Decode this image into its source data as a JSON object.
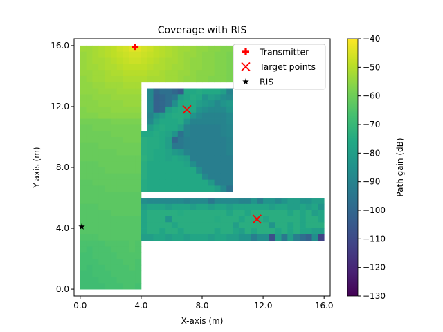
{
  "chart_data": {
    "type": "heatmap",
    "title": "Coverage with RIS",
    "xlabel": "X-axis (m)",
    "ylabel": "Y-axis (m)",
    "xlim": [
      -0.4,
      16.4
    ],
    "ylim": [
      -0.45,
      16.45
    ],
    "x_ticks": [
      0,
      4,
      8,
      12,
      16
    ],
    "x_tick_labels": [
      "0.0",
      "4.0",
      "8.0",
      "12.0",
      "16.0"
    ],
    "y_ticks": [
      0,
      4,
      8,
      12,
      16
    ],
    "y_tick_labels": [
      "0.0",
      "4.0",
      "8.0",
      "12.0",
      "16.0"
    ],
    "grid": false,
    "colormap": "viridis",
    "colorbar": {
      "label": "Path gain (dB)",
      "range": [
        -130,
        -40
      ],
      "ticks": [
        -130,
        -120,
        -110,
        -100,
        -90,
        -80,
        -70,
        -60,
        -50,
        -40
      ],
      "tick_labels": [
        "−130",
        "−120",
        "−110",
        "−100",
        "−90",
        "−80",
        "−70",
        "−60",
        "−50",
        "−40"
      ]
    },
    "grid_extent_m": [
      0,
      16,
      0,
      16
    ],
    "cell_size_m": 0.4,
    "rows_top_to_bottom_dB": [
      [
        -53,
        -53,
        -52,
        -51,
        -50,
        -49,
        -47,
        -46,
        -44,
        -44,
        -46,
        -47,
        -49,
        -50,
        -51,
        -52,
        -53,
        -53,
        -54,
        -55,
        -55,
        -56,
        -56,
        -57,
        -57
      ],
      [
        -54,
        -53,
        -52,
        -51,
        -50,
        -49,
        -48,
        -47,
        -46,
        -46,
        -47,
        -48,
        -49,
        -50,
        -51,
        -52,
        -53,
        -54,
        -54,
        -55,
        -56,
        -56,
        -57,
        -57,
        -58
      ],
      [
        -54,
        -53,
        -52,
        -52,
        -51,
        -50,
        -49,
        -48,
        -47,
        -47,
        -48,
        -49,
        -50,
        -51,
        -52,
        -52,
        -53,
        -54,
        -55,
        -55,
        -56,
        -56,
        -57,
        -57,
        -58
      ],
      [
        -54,
        -53,
        -53,
        -52,
        -51,
        -51,
        -50,
        -49,
        -49,
        -49,
        -49,
        -50,
        -51,
        -51,
        -52,
        -53,
        -53,
        -54,
        -55,
        -55,
        -56,
        -56,
        -57,
        -57,
        -58
      ],
      [
        -54,
        -54,
        -53,
        -53,
        -52,
        -51,
        -51,
        -50,
        -50,
        -50,
        -50,
        -51,
        -51,
        -52,
        -53,
        -53,
        -54,
        -54,
        -55,
        -56,
        -56,
        -56,
        -57,
        -57,
        -58
      ],
      [
        -55,
        -54,
        -53,
        -53,
        -52,
        -52,
        -52,
        -51,
        -51,
        -51,
        -51,
        -52,
        -52,
        -52,
        -53,
        -53,
        -54,
        -55,
        -55,
        -56,
        -56,
        -57,
        -57,
        -57,
        -58
      ],
      [
        -55,
        -55,
        -54,
        -54,
        -53,
        -53,
        -53,
        -52,
        -52,
        -52
      ],
      [
        -55,
        -55,
        -55,
        -54,
        -54,
        -54,
        -53,
        -53,
        -53,
        -53,
        null,
        -88,
        -100,
        -97,
        -97,
        -100,
        -104,
        -76,
        -76,
        -75,
        -76,
        -76,
        -76,
        -80,
        -90
      ],
      [
        -56,
        -56,
        -55,
        -55,
        -55,
        -54,
        -54,
        -54,
        -54,
        -54,
        null,
        -88,
        -102,
        -100,
        -97,
        -94,
        -80,
        -77,
        -75,
        -76,
        -84,
        -80,
        -82,
        -86,
        -88
      ],
      [
        -56,
        -56,
        -56,
        -55,
        -55,
        -55,
        -55,
        -54,
        -54,
        -54,
        null,
        -88,
        -102,
        -100,
        -97,
        -86,
        -76,
        -75,
        -76,
        -80,
        -82,
        -84,
        -88,
        -84,
        -82
      ],
      [
        -57,
        -56,
        -56,
        -56,
        -56,
        -55,
        -55,
        -55,
        -55,
        -55,
        null,
        -88,
        -102,
        -100,
        -80,
        -76,
        -75,
        -74,
        -76,
        -84,
        -86,
        -88,
        -88,
        -88,
        -84
      ],
      [
        -57,
        -57,
        -57,
        -56,
        -56,
        -56,
        -56,
        -56,
        -56,
        -56,
        null,
        -90,
        -84,
        -80,
        -76,
        -75,
        -75,
        -76,
        -84,
        -88,
        -90,
        -90,
        -90,
        -90,
        -88
      ],
      [
        -59,
        -59,
        -59,
        -59,
        -59,
        -58,
        -58,
        -58,
        -58,
        -58,
        null,
        -88,
        -80,
        -76,
        -76,
        -76,
        -75,
        -84,
        -90,
        -90,
        -90,
        -90,
        -90,
        -90,
        -88
      ],
      [
        -60,
        -60,
        -59,
        -59,
        -59,
        -59,
        -59,
        -59,
        -59,
        -59,
        null,
        -80,
        -76,
        -75,
        -76,
        -76,
        -80,
        -90,
        -92,
        -92,
        -92,
        -92,
        -92,
        -90,
        -89
      ],
      [
        -60,
        -60,
        -60,
        -60,
        -60,
        -59,
        -59,
        -59,
        -59,
        -59,
        -76,
        -76,
        -75,
        -76,
        -78,
        -84,
        -96,
        -90,
        -92,
        -92,
        -92,
        -92,
        -92,
        -90,
        -89
      ],
      [
        -60,
        -60,
        -60,
        -60,
        -60,
        -60,
        -60,
        -59,
        -59,
        -59,
        -74,
        -75,
        -75,
        -76,
        -80,
        -100,
        -94,
        -92,
        -92,
        -92,
        -92,
        -92,
        -92,
        -92,
        -90
      ],
      [
        -61,
        -61,
        -61,
        -60,
        -60,
        -60,
        -60,
        -60,
        -60,
        -60,
        -74,
        -75,
        -75,
        -76,
        -80,
        -94,
        -94,
        -92,
        -92,
        -92,
        -92,
        -92,
        -92,
        -92,
        -90
      ],
      [
        -61,
        -61,
        -61,
        -61,
        -61,
        -61,
        -60,
        -60,
        -60,
        -60,
        -74,
        -75,
        -76,
        -76,
        -78,
        -82,
        -84,
        -90,
        -92,
        -92,
        -92,
        -92,
        -92,
        -92,
        -90
      ],
      [
        -61,
        -61,
        -61,
        -61,
        -61,
        -61,
        -61,
        -61,
        -61,
        -61,
        -73,
        -75,
        -76,
        -76,
        -78,
        -76,
        -78,
        -80,
        -92,
        -92,
        -92,
        -92,
        -92,
        -92,
        -92
      ],
      [
        -62,
        -62,
        -62,
        -61,
        -61,
        -61,
        -61,
        -61,
        -61,
        -61,
        -74,
        -76,
        -76,
        -76,
        -76,
        -76,
        -76,
        -78,
        -86,
        -92,
        -92,
        -92,
        -92,
        -92,
        -92
      ],
      [
        -62,
        -62,
        -62,
        -62,
        -61,
        -61,
        -61,
        -61,
        -61,
        -61,
        -74,
        -76,
        -76,
        -76,
        -76,
        -76,
        -76,
        -76,
        -76,
        -86,
        -92,
        -92,
        -92,
        -92,
        -92
      ],
      [
        -62,
        -62,
        -62,
        -62,
        -62,
        -62,
        -62,
        -62,
        -62,
        -62,
        -74,
        -76,
        -76,
        -76,
        -76,
        -76,
        -76,
        -76,
        -76,
        -76,
        -88,
        -92,
        -92,
        -92,
        -92
      ],
      [
        -63,
        -63,
        -62,
        -62,
        -62,
        -62,
        -62,
        -62,
        -62,
        -62,
        -75,
        -76,
        -76,
        -76,
        -76,
        -76,
        -76,
        -76,
        -76,
        -76,
        -76,
        -82,
        -92,
        -92,
        -92
      ],
      [
        -63,
        -63,
        -63,
        -63,
        -62,
        -62,
        -62,
        -62,
        -62,
        -62,
        -75,
        -76,
        -76,
        -76,
        -76,
        -76,
        -76,
        -76,
        -76,
        -76,
        -76,
        -76,
        -80,
        -88,
        -96
      ],
      [
        -63,
        -63,
        -63,
        -63,
        -63,
        -63,
        -63,
        -63,
        -63,
        -63
      ],
      [
        -63,
        -63,
        -63,
        -63,
        -63,
        -63,
        -63,
        -63,
        -63,
        -63,
        -86,
        -88,
        -88,
        -88,
        -88,
        -88,
        -88,
        -90,
        -88,
        -88,
        -88,
        -94,
        -88,
        -88,
        -88,
        -88,
        -90,
        -90,
        -84,
        -92,
        -84,
        -84,
        -88,
        -84,
        -80,
        -80,
        -84,
        -84,
        -80,
        -80
      ],
      [
        -64,
        -64,
        -64,
        -63,
        -63,
        -63,
        -63,
        -63,
        -63,
        -63,
        -80,
        -77,
        -77,
        -77,
        -80,
        -77,
        -77,
        -77,
        -80,
        -77,
        -77,
        -80,
        -77,
        -77,
        -80,
        -77,
        -77,
        -77,
        -77,
        -77,
        -77,
        -80,
        -77,
        -77,
        -80,
        -80,
        -77,
        -80,
        -77,
        -84
      ],
      [
        -64,
        -64,
        -64,
        -64,
        -64,
        -63,
        -63,
        -63,
        -63,
        -63,
        -77,
        -74,
        -74,
        -74,
        -74,
        -74,
        -75,
        -74,
        -74,
        -74,
        -74,
        -74,
        -74,
        -74,
        -77,
        -74,
        -74,
        -77,
        -74,
        -74,
        -74,
        -74,
        -74,
        -74,
        -77,
        -74,
        -77,
        -74,
        -80,
        -77
      ],
      [
        -64,
        -64,
        -64,
        -64,
        -64,
        -64,
        -64,
        -64,
        -64,
        -64,
        -77,
        -74,
        -74,
        -74,
        -84,
        -74,
        -74,
        -74,
        -74,
        -74,
        -74,
        -74,
        -75,
        -74,
        -74,
        -74,
        -77,
        -74,
        -74,
        -74,
        -77,
        -74,
        -74,
        -74,
        -74,
        -74,
        -77,
        -74,
        -74,
        -77
      ],
      [
        -64,
        -64,
        -64,
        -64,
        -64,
        -64,
        -64,
        -64,
        -64,
        -64,
        -77,
        -74,
        -74,
        -74,
        -74,
        -77,
        -74,
        -74,
        -74,
        -74,
        -74,
        -74,
        -74,
        -74,
        -74,
        -80,
        -74,
        -74,
        -74,
        -74,
        -74,
        -84,
        -74,
        -74,
        -77,
        -74,
        -77,
        -74,
        -74,
        -74
      ],
      [
        -64,
        -64,
        -64,
        -64,
        -64,
        -64,
        -64,
        -64,
        -64,
        -64,
        -77,
        -74,
        -74,
        -77,
        -74,
        -74,
        -77,
        -74,
        -74,
        -74,
        -74,
        -74,
        -77,
        -74,
        -74,
        -77,
        -80,
        -74,
        -77,
        -74,
        -74,
        -74,
        -77,
        -74,
        -77,
        -74,
        -77,
        -77,
        -80,
        -80
      ],
      [
        -65,
        -65,
        -65,
        -64,
        -64,
        -64,
        -64,
        -64,
        -64,
        -64,
        -80,
        -80,
        -77,
        -77,
        -80,
        -77,
        -77,
        -80,
        -77,
        -77,
        -77,
        -80,
        -77,
        -77,
        -80,
        -80,
        -84,
        -84,
        -92,
        -86,
        -86,
        -108,
        -80,
        -94,
        -80,
        -92,
        -98,
        -102,
        -86,
        -112
      ],
      [
        -66,
        -66,
        -66,
        -66,
        -65,
        -65,
        -65,
        -65,
        -64,
        -65
      ],
      [
        -66,
        -67,
        -66,
        -66,
        -66,
        -65,
        -65,
        -65,
        -64,
        -65
      ],
      [
        -67,
        -67,
        -66,
        -66,
        -66,
        -66,
        -65,
        -65,
        -65,
        -65
      ],
      [
        -67,
        -67,
        -67,
        -66,
        -66,
        -66,
        -66,
        -65,
        -65,
        -66
      ],
      [
        -67,
        -68,
        -67,
        -67,
        -66,
        -66,
        -66,
        -66,
        -65,
        -66
      ],
      [
        -68,
        -68,
        -67,
        -67,
        -67,
        -66,
        -66,
        -66,
        -66,
        -66
      ],
      [
        -68,
        -68,
        -68,
        -67,
        -67,
        -67,
        -66,
        -66,
        -66,
        -66
      ],
      [
        -68,
        -68,
        -68,
        -68,
        -67,
        -67,
        -67,
        -66,
        -66,
        -67
      ]
    ],
    "markers": [
      {
        "name": "Transmitter",
        "symbol": "plus",
        "color": "#ff0000",
        "points": [
          [
            3.6,
            15.9
          ]
        ]
      },
      {
        "name": "Target points",
        "symbol": "x",
        "color": "#ff0000",
        "points": [
          [
            7.0,
            11.8
          ],
          [
            11.6,
            4.6
          ]
        ]
      },
      {
        "name": "RIS",
        "symbol": "star",
        "color": "#000000",
        "points": [
          [
            0.1,
            4.1
          ]
        ]
      }
    ],
    "legend_position": "top-right"
  }
}
